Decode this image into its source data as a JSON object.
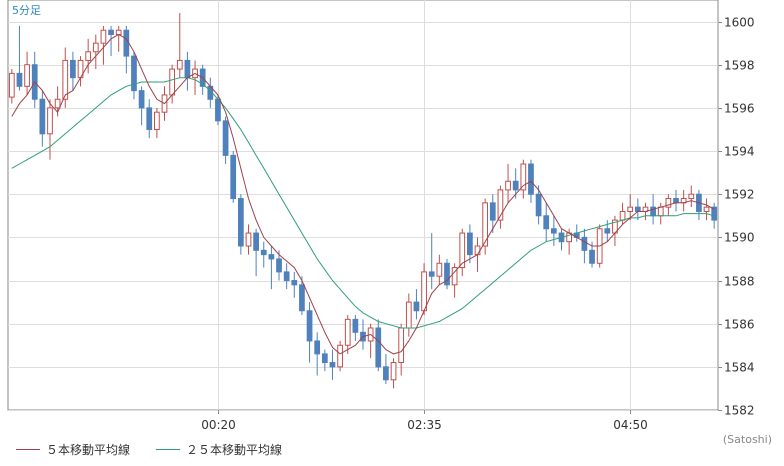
{
  "chart_data": {
    "type": "candlestick",
    "period_label": "5分足",
    "credit": "(Satoshi)",
    "ylim": [
      1582,
      1601
    ],
    "y_ticks": [
      1582,
      1584,
      1586,
      1588,
      1590,
      1592,
      1594,
      1596,
      1598,
      1600
    ],
    "x_ticks": [
      {
        "label": "00:20",
        "index": 27
      },
      {
        "label": "02:35",
        "index": 54
      },
      {
        "label": "04:50",
        "index": 81
      }
    ],
    "grid": true,
    "colors": {
      "up": "#c0504d",
      "down": "#4f81bd",
      "ma5": "#a0404a",
      "ma25": "#2e9e78",
      "grid": "#dddddd",
      "axis": "#888888"
    },
    "legend": [
      {
        "label": "５本移動平均線",
        "color": "#a0404a"
      },
      {
        "label": "２５本移動平均線",
        "color": "#2e9e78"
      }
    ],
    "candles": [
      [
        1596.5,
        1597.8,
        1596.2,
        1597.6
      ],
      [
        1597.6,
        1599.8,
        1596.8,
        1597.0
      ],
      [
        1597.0,
        1598.6,
        1596.6,
        1598.0
      ],
      [
        1598.0,
        1598.6,
        1596.0,
        1596.4
      ],
      [
        1596.4,
        1596.8,
        1594.2,
        1594.8
      ],
      [
        1594.8,
        1596.4,
        1593.6,
        1596.0
      ],
      [
        1596.0,
        1597.0,
        1595.6,
        1596.4
      ],
      [
        1596.4,
        1598.8,
        1596.0,
        1598.2
      ],
      [
        1598.2,
        1598.6,
        1596.8,
        1597.4
      ],
      [
        1597.4,
        1598.4,
        1597.0,
        1598.2
      ],
      [
        1598.2,
        1599.2,
        1597.6,
        1598.6
      ],
      [
        1598.6,
        1599.4,
        1597.8,
        1599.0
      ],
      [
        1599.0,
        1599.8,
        1598.0,
        1599.6
      ],
      [
        1599.6,
        1599.8,
        1598.4,
        1599.4
      ],
      [
        1599.4,
        1599.8,
        1598.6,
        1599.6
      ],
      [
        1599.6,
        1599.8,
        1597.6,
        1598.4
      ],
      [
        1598.4,
        1598.6,
        1596.4,
        1596.8
      ],
      [
        1596.8,
        1597.0,
        1595.2,
        1596.0
      ],
      [
        1596.0,
        1596.4,
        1594.6,
        1595.0
      ],
      [
        1595.0,
        1596.0,
        1594.6,
        1595.8
      ],
      [
        1595.8,
        1597.0,
        1595.4,
        1596.6
      ],
      [
        1596.6,
        1598.0,
        1596.2,
        1597.8
      ],
      [
        1597.8,
        1600.4,
        1597.4,
        1598.2
      ],
      [
        1598.2,
        1598.6,
        1596.8,
        1597.4
      ],
      [
        1597.4,
        1598.2,
        1596.6,
        1597.8
      ],
      [
        1597.8,
        1598.0,
        1596.6,
        1597.0
      ],
      [
        1597.0,
        1597.4,
        1596.0,
        1596.4
      ],
      [
        1596.4,
        1596.6,
        1595.2,
        1595.4
      ],
      [
        1595.4,
        1595.6,
        1593.4,
        1593.8
      ],
      [
        1593.8,
        1594.0,
        1591.6,
        1591.8
      ],
      [
        1591.8,
        1592.0,
        1589.2,
        1589.6
      ],
      [
        1589.6,
        1590.6,
        1589.2,
        1590.2
      ],
      [
        1590.2,
        1590.4,
        1588.2,
        1589.4
      ],
      [
        1589.4,
        1589.8,
        1588.6,
        1589.2
      ],
      [
        1589.2,
        1589.6,
        1587.6,
        1589.0
      ],
      [
        1589.0,
        1589.4,
        1588.0,
        1588.4
      ],
      [
        1588.4,
        1588.8,
        1587.6,
        1588.0
      ],
      [
        1588.0,
        1588.4,
        1587.2,
        1587.8
      ],
      [
        1587.8,
        1588.2,
        1586.4,
        1586.6
      ],
      [
        1586.6,
        1587.0,
        1584.2,
        1585.2
      ],
      [
        1585.2,
        1585.6,
        1583.6,
        1584.6
      ],
      [
        1584.6,
        1584.8,
        1583.8,
        1584.2
      ],
      [
        1584.2,
        1584.8,
        1583.4,
        1584.0
      ],
      [
        1584.0,
        1585.2,
        1583.8,
        1585.0
      ],
      [
        1585.0,
        1586.4,
        1584.6,
        1586.2
      ],
      [
        1586.2,
        1586.4,
        1585.2,
        1585.6
      ],
      [
        1585.6,
        1586.2,
        1584.8,
        1585.2
      ],
      [
        1585.2,
        1586.0,
        1584.4,
        1585.8
      ],
      [
        1585.8,
        1586.2,
        1583.8,
        1584.0
      ],
      [
        1584.0,
        1584.6,
        1583.2,
        1583.4
      ],
      [
        1583.4,
        1584.4,
        1583.0,
        1584.2
      ],
      [
        1584.2,
        1586.0,
        1583.6,
        1585.8
      ],
      [
        1585.8,
        1587.4,
        1585.4,
        1587.0
      ],
      [
        1587.0,
        1587.6,
        1586.2,
        1586.6
      ],
      [
        1586.6,
        1588.8,
        1586.4,
        1588.4
      ],
      [
        1588.4,
        1590.2,
        1587.6,
        1588.2
      ],
      [
        1588.2,
        1589.2,
        1587.8,
        1588.8
      ],
      [
        1588.8,
        1589.0,
        1587.6,
        1587.8
      ],
      [
        1587.8,
        1588.8,
        1587.2,
        1588.6
      ],
      [
        1588.6,
        1590.4,
        1588.2,
        1590.2
      ],
      [
        1590.2,
        1590.6,
        1588.8,
        1589.2
      ],
      [
        1589.2,
        1590.0,
        1588.4,
        1589.6
      ],
      [
        1589.6,
        1591.8,
        1589.2,
        1591.6
      ],
      [
        1591.6,
        1592.0,
        1590.2,
        1590.8
      ],
      [
        1590.8,
        1592.4,
        1590.4,
        1592.2
      ],
      [
        1592.2,
        1593.4,
        1591.6,
        1592.6
      ],
      [
        1592.6,
        1593.2,
        1591.8,
        1592.2
      ],
      [
        1592.2,
        1593.6,
        1591.8,
        1593.4
      ],
      [
        1593.4,
        1593.6,
        1591.6,
        1592.0
      ],
      [
        1592.0,
        1592.4,
        1590.6,
        1591.0
      ],
      [
        1591.0,
        1591.6,
        1589.8,
        1590.4
      ],
      [
        1590.4,
        1591.0,
        1589.6,
        1590.2
      ],
      [
        1590.2,
        1590.4,
        1589.4,
        1589.8
      ],
      [
        1589.8,
        1590.4,
        1589.2,
        1590.2
      ],
      [
        1590.2,
        1590.6,
        1589.8,
        1590.0
      ],
      [
        1590.0,
        1590.4,
        1588.8,
        1589.4
      ],
      [
        1589.4,
        1589.8,
        1588.6,
        1588.8
      ],
      [
        1588.8,
        1590.6,
        1588.6,
        1590.4
      ],
      [
        1590.4,
        1590.8,
        1589.8,
        1590.2
      ],
      [
        1590.2,
        1591.0,
        1589.6,
        1590.8
      ],
      [
        1590.8,
        1591.6,
        1590.6,
        1591.2
      ],
      [
        1591.2,
        1592.0,
        1590.8,
        1591.4
      ],
      [
        1591.4,
        1591.8,
        1590.8,
        1591.2
      ],
      [
        1591.2,
        1591.6,
        1590.8,
        1591.4
      ],
      [
        1591.4,
        1592.0,
        1590.6,
        1591.0
      ],
      [
        1591.0,
        1591.6,
        1590.6,
        1591.4
      ],
      [
        1591.4,
        1592.0,
        1591.0,
        1591.8
      ],
      [
        1591.8,
        1592.2,
        1591.2,
        1591.6
      ],
      [
        1591.6,
        1592.2,
        1591.2,
        1591.8
      ],
      [
        1591.8,
        1592.4,
        1591.4,
        1592.0
      ],
      [
        1592.0,
        1592.2,
        1590.8,
        1591.2
      ],
      [
        1591.2,
        1591.8,
        1590.8,
        1591.4
      ],
      [
        1591.4,
        1591.6,
        1590.4,
        1590.8
      ]
    ],
    "ma5": [
      1595.6,
      1596.2,
      1596.6,
      1597.2,
      1596.8,
      1596.2,
      1595.8,
      1596.6,
      1596.8,
      1597.4,
      1598.0,
      1598.4,
      1598.8,
      1599.2,
      1599.4,
      1599.2,
      1598.6,
      1597.8,
      1597.0,
      1596.4,
      1596.2,
      1596.6,
      1597.0,
      1597.4,
      1597.6,
      1597.4,
      1597.0,
      1596.6,
      1595.8,
      1594.6,
      1593.2,
      1591.8,
      1590.8,
      1590.0,
      1589.6,
      1589.2,
      1588.9,
      1588.6,
      1588.0,
      1587.2,
      1586.4,
      1585.6,
      1584.9,
      1584.6,
      1584.8,
      1585.0,
      1585.4,
      1585.5,
      1585.2,
      1584.8,
      1584.6,
      1584.7,
      1585.2,
      1585.8,
      1586.6,
      1587.4,
      1587.8,
      1588.0,
      1588.4,
      1588.8,
      1589.0,
      1589.2,
      1589.8,
      1590.4,
      1591.0,
      1591.6,
      1592.0,
      1592.4,
      1592.6,
      1592.2,
      1591.6,
      1591.0,
      1590.4,
      1590.2,
      1590.0,
      1589.8,
      1589.6,
      1589.6,
      1589.8,
      1590.2,
      1590.6,
      1590.9,
      1591.2,
      1591.2,
      1591.3,
      1591.4,
      1591.5,
      1591.6,
      1591.6,
      1591.7,
      1591.6,
      1591.5,
      1591.3
    ],
    "ma25": [
      1593.2,
      1593.4,
      1593.6,
      1593.8,
      1594.0,
      1594.2,
      1594.5,
      1594.8,
      1595.1,
      1595.4,
      1595.7,
      1596.0,
      1596.3,
      1596.6,
      1596.8,
      1597.0,
      1597.1,
      1597.2,
      1597.2,
      1597.2,
      1597.2,
      1597.3,
      1597.4,
      1597.4,
      1597.3,
      1597.1,
      1596.8,
      1596.4,
      1596.0,
      1595.5,
      1595.0,
      1594.4,
      1593.8,
      1593.2,
      1592.6,
      1592.0,
      1591.4,
      1590.8,
      1590.2,
      1589.6,
      1589.0,
      1588.5,
      1588.0,
      1587.6,
      1587.2,
      1586.8,
      1586.5,
      1586.3,
      1586.1,
      1586.0,
      1585.9,
      1585.8,
      1585.8,
      1585.8,
      1585.9,
      1586.0,
      1586.1,
      1586.3,
      1586.5,
      1586.7,
      1587.0,
      1587.3,
      1587.6,
      1587.9,
      1588.2,
      1588.5,
      1588.8,
      1589.1,
      1589.4,
      1589.6,
      1589.8,
      1589.9,
      1590.0,
      1590.1,
      1590.2,
      1590.3,
      1590.4,
      1590.5,
      1590.6,
      1590.7,
      1590.8,
      1590.9,
      1590.9,
      1591.0,
      1591.0,
      1591.0,
      1591.0,
      1591.0,
      1591.1,
      1591.1,
      1591.1,
      1591.1,
      1591.0
    ]
  }
}
